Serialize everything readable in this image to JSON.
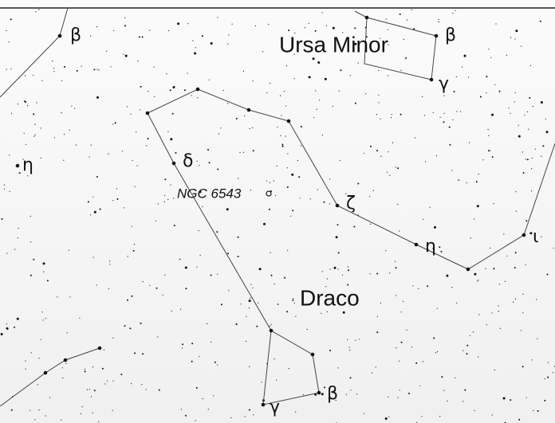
{
  "constellations": {
    "ursa_minor": "Ursa Minor",
    "draco": "Draco"
  },
  "objects": {
    "ngc": "NGC 6543"
  },
  "stars": {
    "left_beta": "β",
    "umi_beta": "β",
    "umi_gamma": "γ",
    "left_eta": "η",
    "dra_delta": "δ",
    "dra_zeta": "ζ",
    "dra_eta": "η",
    "dra_iota": "ι",
    "dra_beta": "β",
    "dra_gamma": "γ"
  }
}
